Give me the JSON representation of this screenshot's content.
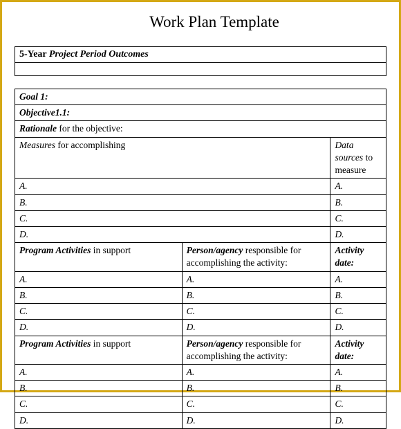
{
  "title": "Work Plan Template",
  "outcomes_label_bold": "5-Year ",
  "outcomes_label_ital": "Project Period Outcomes",
  "goal_label": "Goal 1:",
  "objective_label": "Objective1.1:",
  "rationale_bold": "Rationale",
  "rationale_rest": " for the objective:",
  "measures_ital": "Measures",
  "measures_rest": " for accomplishing",
  "datasources_ital": "Data sources",
  "datasources_rest": " to measure",
  "items": [
    "A.",
    "B.",
    "C.",
    "D."
  ],
  "program_bold": "Program Activities",
  "program_rest": " in support",
  "person_bold": "Person/agency",
  "person_rest": " responsible for accomplishing the activity:",
  "activity_date": "Activity date:",
  "colors": {
    "border": "#d4a815",
    "line": "#000000",
    "background": "#ffffff"
  }
}
